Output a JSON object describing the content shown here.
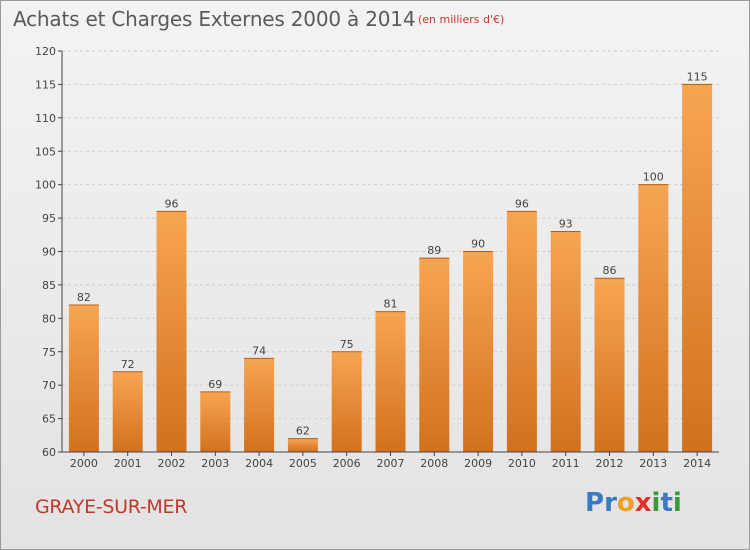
{
  "header": {
    "title": "Achats et Charges Externes 2000 à 2014",
    "subtitle": "(en milliers d'€)"
  },
  "footer": {
    "city": "GRAYE-SUR-MER",
    "logo_letters": [
      {
        "char": "P",
        "color": "#3a7ac0"
      },
      {
        "char": "r",
        "color": "#3a7ac0"
      },
      {
        "char": "o",
        "color": "#f0a020"
      },
      {
        "char": "x",
        "color": "#e0302a"
      },
      {
        "char": "i",
        "color": "#3a9a3a"
      },
      {
        "char": "t",
        "color": "#3a7ac0"
      },
      {
        "char": "i",
        "color": "#3a9a3a"
      }
    ]
  },
  "colors": {
    "bar_light": "#f7a552",
    "bar_dark": "#d2711d",
    "axis": "#444444",
    "grid": "#cfcfcf",
    "title": "#5a5a5a",
    "accent": "#c0392b"
  },
  "chart_data": {
    "type": "bar",
    "title": "Achats et Charges Externes 2000 à 2014",
    "subtitle": "(en milliers d'€)",
    "xlabel": "",
    "ylabel": "",
    "categories": [
      "2000",
      "2001",
      "2002",
      "2003",
      "2004",
      "2005",
      "2006",
      "2007",
      "2008",
      "2009",
      "2010",
      "2011",
      "2012",
      "2013",
      "2014"
    ],
    "values": [
      82,
      72,
      96,
      69,
      74,
      62,
      75,
      81,
      89,
      90,
      96,
      93,
      86,
      100,
      115
    ],
    "ylim": [
      60,
      120
    ],
    "yticks": [
      60,
      65,
      70,
      75,
      80,
      85,
      90,
      95,
      100,
      105,
      110,
      115,
      120
    ],
    "grid": true,
    "legend": "none"
  }
}
